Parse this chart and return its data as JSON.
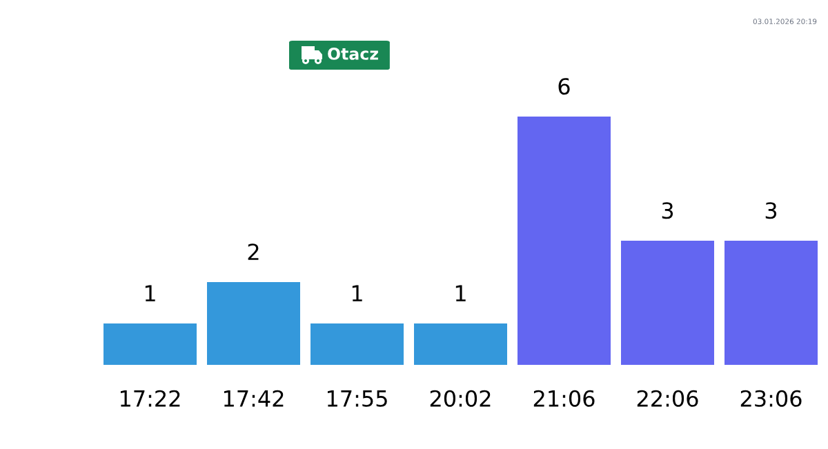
{
  "chart_data": {
    "type": "bar",
    "title": "Otacz",
    "categories": [
      "17:22",
      "17:42",
      "17:55",
      "20:02",
      "21:06",
      "22:06",
      "23:06"
    ],
    "values": [
      1,
      2,
      1,
      1,
      6,
      3,
      3
    ],
    "colors": [
      "#3498db",
      "#3498db",
      "#3498db",
      "#3498db",
      "#6366f1",
      "#6366f1",
      "#6366f1"
    ],
    "data_labels": true,
    "tick_labels": "x",
    "grid": false,
    "annotations": [
      "03.01.2026 20:19"
    ]
  }
}
